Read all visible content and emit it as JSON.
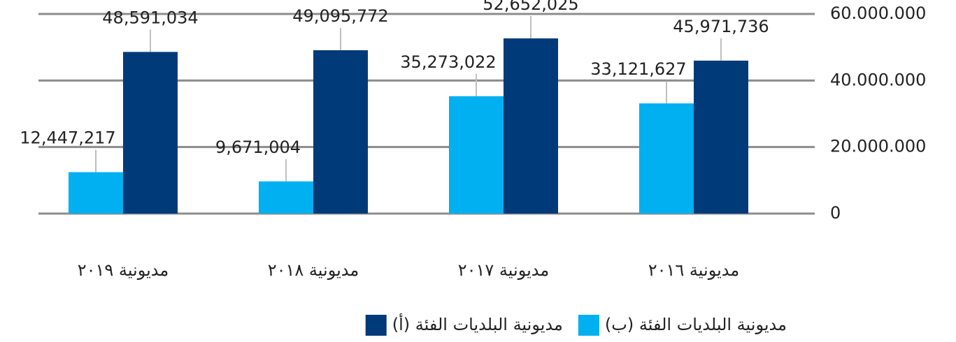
{
  "chart_data": {
    "type": "bar",
    "categories": [
      "مديونية ٢٠١٩",
      "مديونية ٢٠١٨",
      "مديونية ٢٠١٧",
      "مديونية ٢٠١٦"
    ],
    "series": [
      {
        "name": "مديونية البلديات الفئة (ب)",
        "color": "#00b0f0",
        "values": [
          12447217,
          9671004,
          35273022,
          33121627
        ],
        "value_labels": [
          "12,447,217",
          "9,671,004",
          "35,273,022",
          "33,121,627"
        ]
      },
      {
        "name": "مديونية البلديات الفئة (أ)",
        "color": "#003a78",
        "values": [
          48591034,
          49095772,
          52652025,
          45971736
        ],
        "value_labels": [
          "48,591,034",
          "49,095,772",
          "52,652,025",
          "45,971,736"
        ]
      }
    ],
    "ylim": [
      0,
      60000000
    ],
    "yticks": [
      0,
      {
        "value": 20000000,
        "label": "20.000.000"
      },
      {
        "value": 40000000,
        "label": "40.000.000"
      },
      {
        "value": 60000000,
        "label": "60.000.000"
      }
    ],
    "grid": true,
    "legend": "bottom"
  }
}
